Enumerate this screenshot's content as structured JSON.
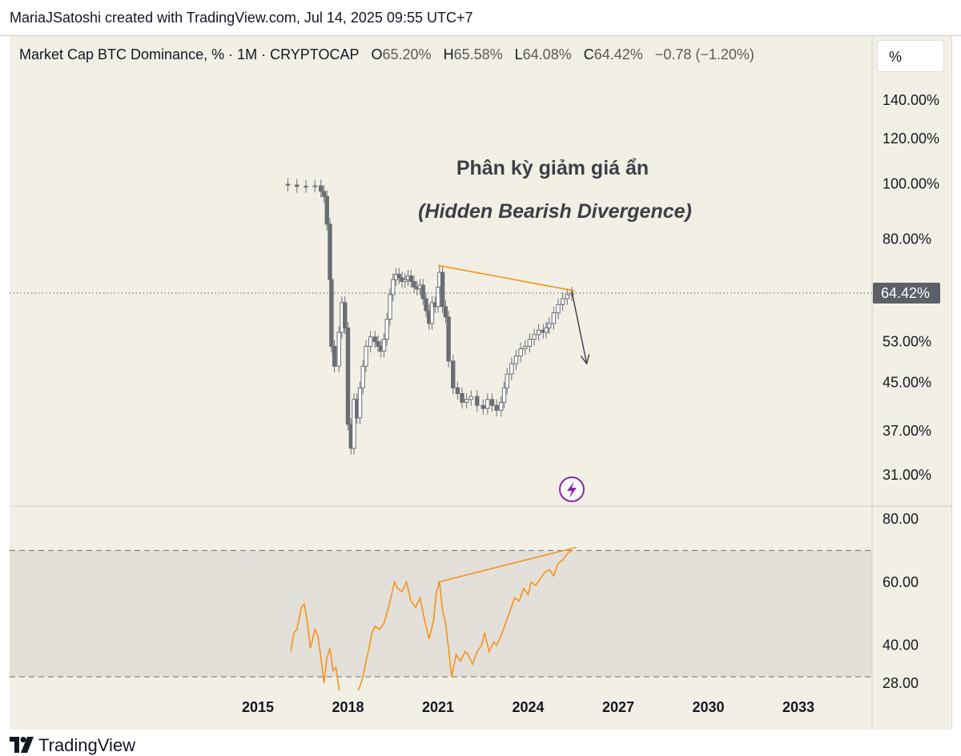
{
  "header": {
    "caption": "MariaJSatoshi created with TradingView.com, Jul 14, 2025 09:55 UTC+7"
  },
  "legend": {
    "title": "Market Cap BTC Dominance, % · 1M · CRYPTOCAP",
    "o_label": "O",
    "o_value": "65.20%",
    "h_label": "H",
    "h_value": "65.58%",
    "l_label": "L",
    "l_value": "64.08%",
    "c_label": "C",
    "c_value": "64.42%",
    "change": "−0.78 (−1.20%)"
  },
  "unit_button": "%",
  "footer": {
    "brand": "TradingView"
  },
  "colors": {
    "panel_bg": "#f2f0e5",
    "candle": "#6b6d75",
    "rsi_line": "#f7931a",
    "trendline": "#f7931a",
    "arrow": "#3b3d44",
    "badge": "#8e24aa",
    "price_label_bg": "#5d6069"
  },
  "icons": [
    "tradingview-logo-icon",
    "lightning-badge-icon"
  ],
  "chart_data": [
    {
      "type": "candlestick",
      "title": "Market Cap BTC Dominance, % · 1M · CRYPTOCAP",
      "scale": "log",
      "x_ticks": [
        "2015",
        "2018",
        "2021",
        "2024",
        "2027",
        "2030",
        "2033"
      ],
      "y_ticks": [
        "140.00%",
        "120.00%",
        "100.00%",
        "80.00%",
        "53.00%",
        "45.00%",
        "37.00%",
        "31.00%"
      ],
      "y_tick_values": [
        140,
        120,
        100,
        80,
        53,
        45,
        37,
        31
      ],
      "last_price_label": "64.42%",
      "last_price": 64.42,
      "series_close": [
        [
          2016.0,
          99.5
        ],
        [
          2016.3,
          98.9
        ],
        [
          2016.6,
          99.0
        ],
        [
          2016.9,
          99.2
        ],
        [
          2017.1,
          97.0
        ],
        [
          2017.2,
          95.0
        ],
        [
          2017.3,
          85.0
        ],
        [
          2017.4,
          68.0
        ],
        [
          2017.45,
          52.0
        ],
        [
          2017.55,
          48.0
        ],
        [
          2017.7,
          55.0
        ],
        [
          2017.8,
          62.0
        ],
        [
          2017.9,
          56.0
        ],
        [
          2018.0,
          38.0
        ],
        [
          2018.1,
          34.5
        ],
        [
          2018.2,
          42.0
        ],
        [
          2018.3,
          39.0
        ],
        [
          2018.4,
          44.0
        ],
        [
          2018.5,
          48.0
        ],
        [
          2018.6,
          52.0
        ],
        [
          2018.75,
          54.0
        ],
        [
          2018.9,
          53.0
        ],
        [
          2019.0,
          52.0
        ],
        [
          2019.1,
          51.0
        ],
        [
          2019.2,
          53.5
        ],
        [
          2019.3,
          58.0
        ],
        [
          2019.4,
          64.0
        ],
        [
          2019.5,
          68.0
        ],
        [
          2019.6,
          69.5
        ],
        [
          2019.7,
          68.5
        ],
        [
          2019.8,
          67.5
        ],
        [
          2019.9,
          68.0
        ],
        [
          2020.0,
          69.0
        ],
        [
          2020.1,
          67.5
        ],
        [
          2020.2,
          66.0
        ],
        [
          2020.3,
          65.5
        ],
        [
          2020.4,
          66.5
        ],
        [
          2020.5,
          63.0
        ],
        [
          2020.6,
          60.0
        ],
        [
          2020.7,
          57.0
        ],
        [
          2020.8,
          62.0
        ],
        [
          2020.9,
          61.0
        ],
        [
          2021.0,
          66.0
        ],
        [
          2021.05,
          70.0
        ],
        [
          2021.15,
          61.0
        ],
        [
          2021.25,
          58.5
        ],
        [
          2021.35,
          49.0
        ],
        [
          2021.5,
          44.0
        ],
        [
          2021.65,
          43.0
        ],
        [
          2021.8,
          41.5
        ],
        [
          2021.95,
          42.0
        ],
        [
          2022.1,
          42.5
        ],
        [
          2022.3,
          41.0
        ],
        [
          2022.5,
          40.5
        ],
        [
          2022.65,
          42.0
        ],
        [
          2022.8,
          41.0
        ],
        [
          2022.95,
          40.2
        ],
        [
          2023.1,
          41.5
        ],
        [
          2023.2,
          44.0
        ],
        [
          2023.3,
          46.5
        ],
        [
          2023.45,
          48.5
        ],
        [
          2023.6,
          50.0
        ],
        [
          2023.75,
          51.5
        ],
        [
          2023.9,
          52.0
        ],
        [
          2024.05,
          53.5
        ],
        [
          2024.2,
          54.5
        ],
        [
          2024.35,
          55.5
        ],
        [
          2024.5,
          55.0
        ],
        [
          2024.6,
          56.0
        ],
        [
          2024.7,
          57.0
        ],
        [
          2024.85,
          59.5
        ],
        [
          2025.0,
          61.5
        ],
        [
          2025.15,
          63.0
        ],
        [
          2025.3,
          64.0
        ],
        [
          2025.45,
          64.42
        ]
      ]
    },
    {
      "type": "line",
      "y_ticks": [
        "80.00",
        "60.00",
        "40.00",
        "28.00"
      ],
      "y_tick_values": [
        80,
        60,
        40,
        28
      ],
      "band": [
        30,
        70
      ],
      "series": [
        {
          "values": [
            [
              2016.1,
              38
            ],
            [
              2016.2,
              44
            ],
            [
              2016.3,
              45
            ],
            [
              2016.45,
              52
            ],
            [
              2016.55,
              53
            ],
            [
              2016.65,
              47
            ],
            [
              2016.75,
              39
            ],
            [
              2016.9,
              45
            ],
            [
              2017.0,
              43
            ],
            [
              2017.1,
              36
            ],
            [
              2017.2,
              28
            ],
            [
              2017.3,
              36
            ],
            [
              2017.4,
              39
            ],
            [
              2017.5,
              32
            ],
            [
              2017.6,
              33
            ],
            [
              2017.7,
              26
            ],
            [
              2017.8,
              25
            ],
            [
              2017.95,
              24
            ],
            [
              2018.05,
              25
            ],
            [
              2018.15,
              24
            ],
            [
              2018.3,
              25
            ],
            [
              2018.4,
              27
            ],
            [
              2018.5,
              30
            ],
            [
              2018.6,
              35
            ],
            [
              2018.7,
              39
            ],
            [
              2018.8,
              44
            ],
            [
              2018.9,
              46
            ],
            [
              2019.05,
              45
            ],
            [
              2019.2,
              47
            ],
            [
              2019.35,
              52
            ],
            [
              2019.45,
              56
            ],
            [
              2019.55,
              60
            ],
            [
              2019.65,
              58
            ],
            [
              2019.8,
              57
            ],
            [
              2019.95,
              60
            ],
            [
              2020.1,
              54
            ],
            [
              2020.25,
              52
            ],
            [
              2020.4,
              55
            ],
            [
              2020.55,
              48
            ],
            [
              2020.7,
              42
            ],
            [
              2020.85,
              48
            ],
            [
              2020.95,
              57
            ],
            [
              2021.05,
              60
            ],
            [
              2021.15,
              51
            ],
            [
              2021.25,
              47
            ],
            [
              2021.35,
              39
            ],
            [
              2021.45,
              30
            ],
            [
              2021.6,
              37
            ],
            [
              2021.75,
              35
            ],
            [
              2021.9,
              38
            ],
            [
              2022.0,
              37
            ],
            [
              2022.15,
              34
            ],
            [
              2022.3,
              38
            ],
            [
              2022.45,
              40
            ],
            [
              2022.55,
              44
            ],
            [
              2022.7,
              38
            ],
            [
              2022.85,
              41
            ],
            [
              2022.95,
              40
            ],
            [
              2023.1,
              43
            ],
            [
              2023.25,
              47
            ],
            [
              2023.4,
              51
            ],
            [
              2023.55,
              55
            ],
            [
              2023.7,
              54
            ],
            [
              2023.85,
              58
            ],
            [
              2024.0,
              56
            ],
            [
              2024.1,
              60
            ],
            [
              2024.25,
              59
            ],
            [
              2024.4,
              61
            ],
            [
              2024.55,
              63
            ],
            [
              2024.7,
              64
            ],
            [
              2024.85,
              62
            ],
            [
              2025.0,
              66
            ],
            [
              2025.15,
              67
            ],
            [
              2025.3,
              69
            ],
            [
              2025.45,
              70
            ]
          ]
        }
      ]
    }
  ],
  "annotations": {
    "title_vi": "Phân kỳ giảm giá ẩn",
    "title_en": "(Hidden Bearish Divergence)",
    "price_trendline": [
      [
        2021.0,
        72.0
      ],
      [
        2025.55,
        65.0
      ]
    ],
    "price_arrow": [
      [
        2025.45,
        65.0
      ],
      [
        2025.95,
        48.5
      ]
    ],
    "rsi_trendline": [
      [
        2021.0,
        60.0
      ],
      [
        2025.6,
        71.0
      ]
    ]
  }
}
